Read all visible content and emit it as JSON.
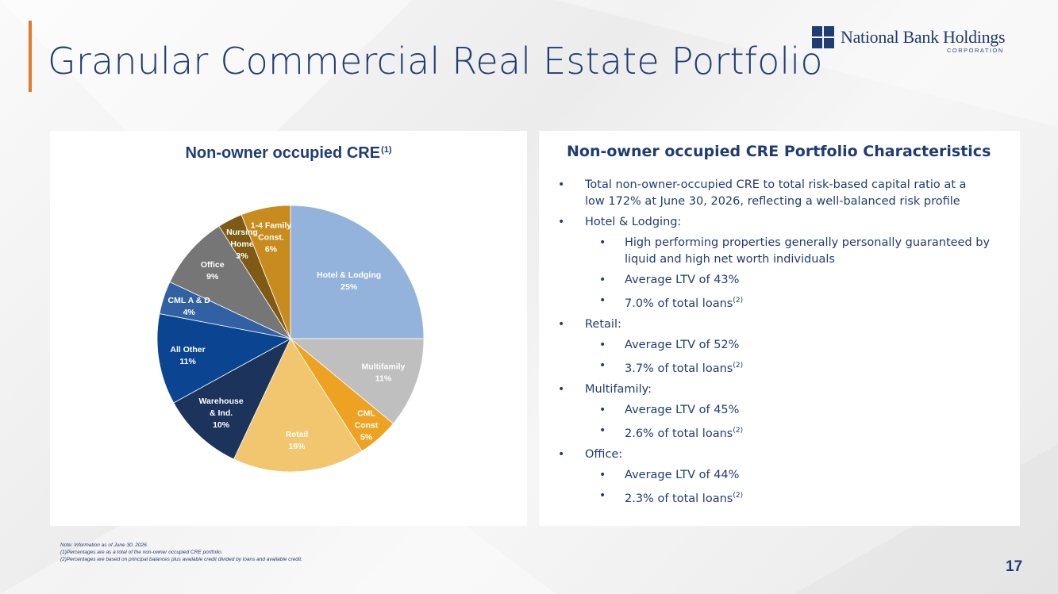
{
  "page": {
    "title": "Granular Commercial Real Estate Portfolio",
    "page_number": "17"
  },
  "logo": {
    "name": "National Bank Holdings",
    "sub": "CORPORATION",
    "color": "#1f3c73"
  },
  "chart_panel": {
    "title": "Non-owner occupied CRE",
    "title_sup": "(1)"
  },
  "chart_data": {
    "type": "pie",
    "title": "Non-owner occupied CRE",
    "start": "12 o'clock",
    "direction": "clockwise",
    "slices": [
      {
        "label": [
          "Hotel & Lodging"
        ],
        "value": 25,
        "value_text": "25%",
        "color": "#94b3dc",
        "text_color": "#ffffff"
      },
      {
        "label": [
          "Multifamily"
        ],
        "value": 11,
        "value_text": "11%",
        "color": "#bfbfbf",
        "text_color": "#ffffff"
      },
      {
        "label": [
          "CML",
          "Const"
        ],
        "value": 5,
        "value_text": "5%",
        "color": "#eda222",
        "text_color": "#ffffff"
      },
      {
        "label": [
          "Retail"
        ],
        "value": 16,
        "value_text": "16%",
        "color": "#f2c66e",
        "text_color": "#ffffff"
      },
      {
        "label": [
          "Warehouse",
          "& Ind."
        ],
        "value": 10,
        "value_text": "10%",
        "color": "#1c335c",
        "text_color": "#ffffff"
      },
      {
        "label": [
          "All Other"
        ],
        "value": 11,
        "value_text": "11%",
        "color": "#0b4490",
        "text_color": "#ffffff"
      },
      {
        "label": [
          "CML A & D"
        ],
        "value": 4,
        "value_text": "4%",
        "color": "#3261a3",
        "text_color": "#ffffff"
      },
      {
        "label": [
          "Office"
        ],
        "value": 9,
        "value_text": "9%",
        "color": "#767676",
        "text_color": "#ffffff"
      },
      {
        "label": [
          "Nursing",
          "Home"
        ],
        "value": 3,
        "value_text": "3%",
        "color": "#7e5a14",
        "text_color": "#ffffff"
      },
      {
        "label": [
          "1-4 Family",
          "Const."
        ],
        "value": 6,
        "value_text": "6%",
        "color": "#c88c1e",
        "text_color": "#ffffff"
      }
    ]
  },
  "characteristics": {
    "title": "Non-owner occupied CRE Portfolio Characteristics",
    "bullets": [
      {
        "text": "Total non-owner-occupied CRE to total risk-based capital ratio at a low 172% at June 30, 2026, reflecting a well-balanced risk profile",
        "sup": ""
      },
      {
        "text": "Hotel & Lodging:",
        "sup": ""
      },
      {
        "text": "High performing properties generally personally guaranteed by liquid and high net worth individuals",
        "sup": ""
      },
      {
        "text": "Average LTV of 43%",
        "sup": ""
      },
      {
        "text": "7.0% of total loans",
        "sup": "(2)"
      },
      {
        "text": "Retail:",
        "sup": ""
      },
      {
        "text": "Average LTV of 52%",
        "sup": ""
      },
      {
        "text": "3.7% of total loans",
        "sup": "(2)"
      },
      {
        "text": "Multifamily:",
        "sup": ""
      },
      {
        "text": "Average LTV of 45%",
        "sup": ""
      },
      {
        "text": "2.6% of total loans",
        "sup": "(2)"
      },
      {
        "text": "Office:",
        "sup": ""
      },
      {
        "text": "Average LTV of 44%",
        "sup": ""
      },
      {
        "text": "2.3% of total loans",
        "sup": "(2)"
      }
    ]
  },
  "notes": {
    "line1": "Note: Information as of June 30, 2026.",
    "line2": "(1)Percentages are as a total of the non-owner occupied CRE portfolio.",
    "line3": "(2)Percentages are based on principal balances plus available credit divided by loans and available credit."
  },
  "colors": {
    "accent": "#e07a2c",
    "text_navy": "#1f3c73"
  }
}
